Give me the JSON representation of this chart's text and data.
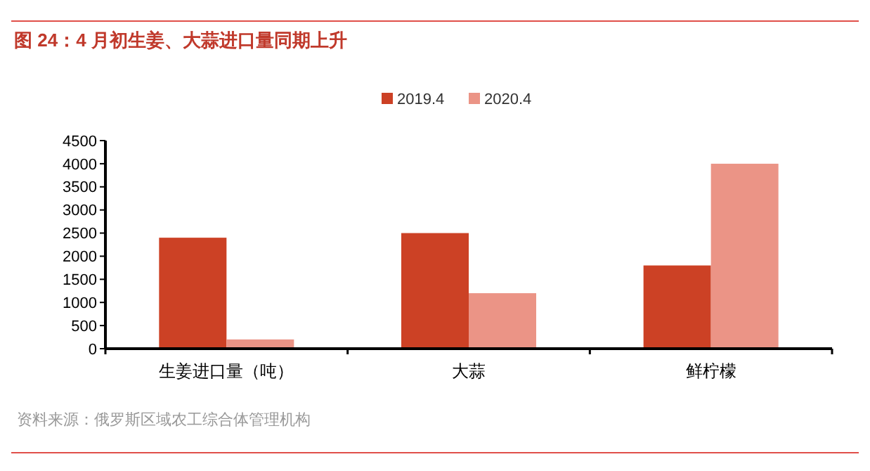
{
  "chart_data": {
    "type": "bar",
    "title": "图 24：4 月初生姜、大蒜进口量同期上升",
    "categories": [
      "生姜进口量（吨）",
      "大蒜",
      "鲜柠檬"
    ],
    "series": [
      {
        "name": "2019.4",
        "color": "#cc4125",
        "values": [
          2400,
          2500,
          1800
        ]
      },
      {
        "name": "2020.4",
        "color": "#eb9486",
        "values": [
          200,
          1200,
          4000
        ]
      }
    ],
    "ylim": [
      0,
      4500
    ],
    "yticks": [
      0,
      500,
      1000,
      1500,
      2000,
      2500,
      3000,
      3500,
      4000,
      4500
    ],
    "legend": "top",
    "grid": false,
    "annotations": [
      "资料来源：俄罗斯区域农工综合体管理机构"
    ]
  }
}
